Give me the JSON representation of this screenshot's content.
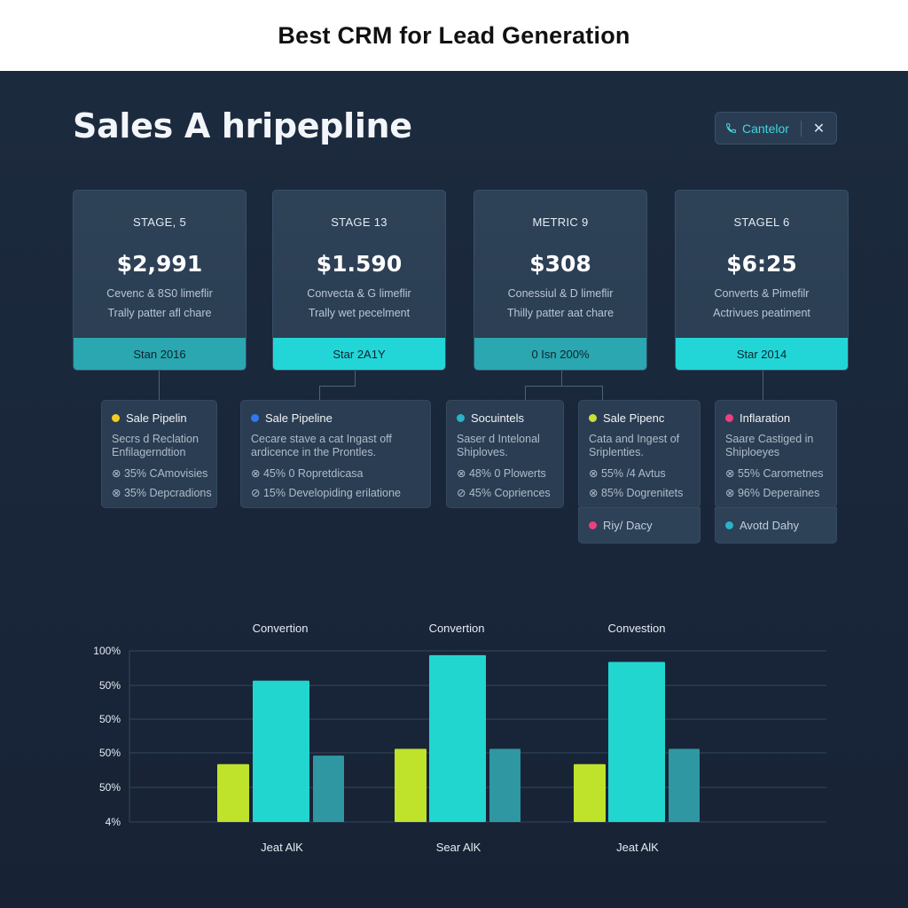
{
  "banner": {
    "title": "Best CRM for Lead Generation"
  },
  "header": {
    "title": "Sales A hripepline",
    "action_label": "Cantelor",
    "close_glyph": "✕"
  },
  "stages": [
    {
      "label": "STAGE, 5",
      "value": "$2,991",
      "line1": "Cevenc & 8S0 limeflir",
      "line2": "Trally patter afl chare",
      "footer": "Stan 2016",
      "footer_style": "dim"
    },
    {
      "label": "STAGE 13",
      "value": "$1.590",
      "line1": "Convecta & G limeflir",
      "line2": "Trally wet pecelment",
      "footer": "Star 2A1Y",
      "footer_style": "bright"
    },
    {
      "label": "METRIC 9",
      "value": "$308",
      "line1": "Conessiul & D limeflir",
      "line2": "Thilly patter aat chare",
      "footer": "0 Isn 200%",
      "footer_style": "dim"
    },
    {
      "label": "STAGEL 6",
      "value": "$6:25",
      "line1": "Converts & Pimefilr",
      "line2": "Actrivues peatiment",
      "footer": "Star 2014",
      "footer_style": "bright"
    }
  ],
  "details": [
    {
      "title": "Sale Pipelin",
      "dot": "#f4cc1e",
      "desc": [
        "Secrs d Reclation",
        "Enfilagerndtion"
      ],
      "stats": [
        "⊗ 35% CAmovisies",
        "⊗ 35% Depcradions"
      ]
    },
    {
      "title": "Sale Pipeline",
      "dot": "#2f78f0",
      "desc": [
        "Cecare stave a cat Ingast off",
        "ardicence in the Prontles."
      ],
      "stats": [
        "⊗ 45% 0 Ropretdicasa",
        "⊘ 15% Developiding erilatione"
      ]
    },
    {
      "title": "Socuintels",
      "dot": "#2ab3c6",
      "desc": [
        "Saser d Intelonal",
        "Shiploves."
      ],
      "stats": [
        "⊗ 48% 0 Plowerts",
        "⊘ 45% Copriences"
      ]
    },
    {
      "title": "Sale Pipenc",
      "dot": "#c6e23a",
      "desc": [
        "Cata and Ingest of",
        "Sriplenties."
      ],
      "stats": [
        "⊗ 55% /4 Avtus",
        "⊗ 85% Dogrenitets"
      ]
    },
    {
      "title": "Inflaration",
      "dot": "#ec3f7f",
      "desc": [
        "Saare Castiged in",
        "Shiploeyes"
      ],
      "stats": [
        "⊗ 55% Carometnes",
        "⊗ 96% Deperaines"
      ]
    }
  ],
  "detail_footers": [
    {
      "label": "Riy/ Dacy",
      "dot": "#ec3f7f"
    },
    {
      "label": "Avotd Dahy",
      "dot": "#2ab3c6"
    }
  ],
  "chart_data": {
    "type": "bar",
    "group_titles": [
      "Convertion",
      "Convertion",
      "Convestion"
    ],
    "categories": [
      "Jeat AlK",
      "Sear AlK",
      "Jeat AlK"
    ],
    "y_tick_labels": [
      "100%",
      "50%",
      "50%",
      "50%",
      "50%",
      "4%"
    ],
    "ylim": [
      0,
      100
    ],
    "series": [
      {
        "values": [
          34,
          43,
          34
        ],
        "color": "#bfe22a"
      },
      {
        "values": [
          83,
          98,
          94
        ],
        "color": "#22d6d0"
      },
      {
        "values": [
          39,
          43,
          43
        ],
        "color": "#2f97a2"
      }
    ],
    "grid": true
  }
}
